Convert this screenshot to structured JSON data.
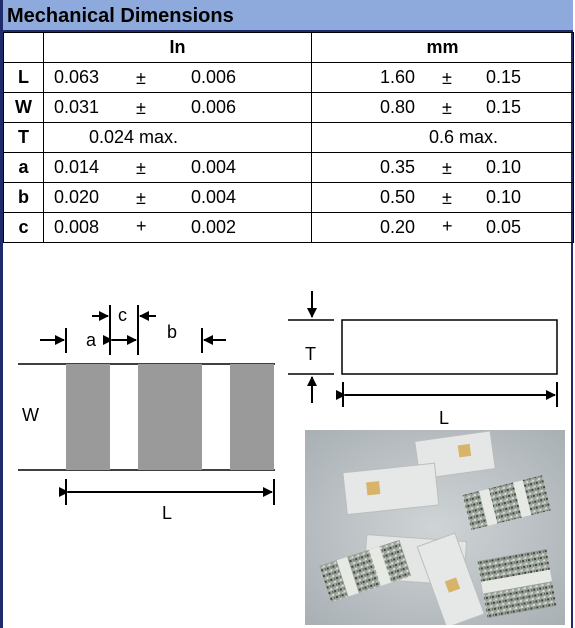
{
  "title": "Mechanical Dimensions",
  "columns": {
    "in": "In",
    "mm": "mm"
  },
  "rows": [
    {
      "label": "L",
      "in": {
        "nom": "0.063",
        "sign": "±",
        "tol": "0.006"
      },
      "mm": {
        "nom": "1.60",
        "sign": "±",
        "tol": "0.15"
      }
    },
    {
      "label": "W",
      "in": {
        "nom": "0.031",
        "sign": "±",
        "tol": "0.006"
      },
      "mm": {
        "nom": "0.80",
        "sign": "±",
        "tol": "0.15"
      }
    },
    {
      "label": "T",
      "in_max": "0.024 max.",
      "mm_max": "0.6 max."
    },
    {
      "label": "a",
      "in": {
        "nom": "0.014",
        "sign": "±",
        "tol": "0.004"
      },
      "mm": {
        "nom": "0.35",
        "sign": "±",
        "tol": "0.10"
      }
    },
    {
      "label": "b",
      "in": {
        "nom": "0.020",
        "sign": "±",
        "tol": "0.004"
      },
      "mm": {
        "nom": "0.50",
        "sign": "±",
        "tol": "0.10"
      }
    },
    {
      "label": "c",
      "in": {
        "nom": "0.008",
        "sign": "+",
        "tol": "0.002"
      },
      "mm": {
        "nom": "0.20",
        "sign": "+",
        "tol": "0.05"
      }
    }
  ],
  "diagram": {
    "labels": {
      "a": "a",
      "b": "b",
      "c": "c",
      "w": "W",
      "l_bottom": "L",
      "t": "T",
      "l_side": "L"
    }
  },
  "colors": {
    "header_bg": "#8ea9db",
    "border": "#1f2a6b",
    "pad_gray": "#9a9a9a"
  }
}
